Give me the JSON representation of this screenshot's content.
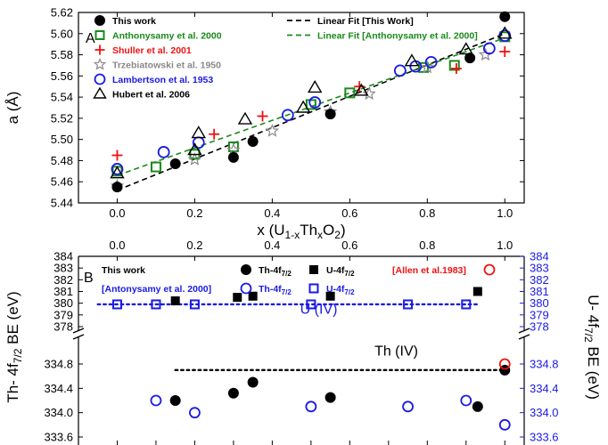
{
  "chart_data": [
    {
      "type": "scatter",
      "panel_label": "A",
      "xlabel": "x (U",
      "xlabel_sub1": "1-x",
      "xlabel_mid": "Th",
      "xlabel_sub2": "x",
      "xlabel_end": "O",
      "xlabel_sub3": "2",
      "xlabel_close": ")",
      "ylabel": "a (Å)",
      "xlim": [
        -0.1,
        1.05
      ],
      "ylim": [
        5.44,
        5.62
      ],
      "x_ticks": [
        "0.0",
        "0.2",
        "0.4",
        "0.6",
        "0.8",
        "1.0"
      ],
      "x_tick_values": [
        0.0,
        0.2,
        0.4,
        0.6,
        0.8,
        1.0
      ],
      "y_ticks": [
        "5.44",
        "5.46",
        "5.48",
        "5.50",
        "5.52",
        "5.54",
        "5.56",
        "5.58",
        "5.60",
        "5.62"
      ],
      "y_tick_values": [
        5.44,
        5.46,
        5.48,
        5.5,
        5.52,
        5.54,
        5.56,
        5.58,
        5.6,
        5.62
      ],
      "legend_placement": "top",
      "series": [
        {
          "name": "This work",
          "marker": "filled-circle",
          "color": "#000000",
          "points": [
            [
              0.0,
              5.455
            ],
            [
              0.15,
              5.477
            ],
            [
              0.3,
              5.483
            ],
            [
              0.35,
              5.498
            ],
            [
              0.55,
              5.524
            ],
            [
              0.91,
              5.577
            ],
            [
              1.0,
              5.616
            ]
          ]
        },
        {
          "name": "Anthonysamy et al. 2000",
          "marker": "open-square",
          "color": "#1a8a1a",
          "points": [
            [
              0.0,
              5.47
            ],
            [
              0.1,
              5.474
            ],
            [
              0.2,
              5.486
            ],
            [
              0.3,
              5.493
            ],
            [
              0.5,
              5.533
            ],
            [
              0.6,
              5.544
            ],
            [
              0.79,
              5.568
            ],
            [
              0.87,
              5.57
            ],
            [
              1.0,
              5.597
            ]
          ]
        },
        {
          "name": "Shuller et al. 2001",
          "marker": "plus",
          "color": "#ee1111",
          "points": [
            [
              0.0,
              5.485
            ],
            [
              0.25,
              5.505
            ],
            [
              0.375,
              5.522
            ],
            [
              0.625,
              5.55
            ],
            [
              0.875,
              5.567
            ],
            [
              1.0,
              5.583
            ]
          ]
        },
        {
          "name": "Trzebiatowski et al. 1950",
          "marker": "open-star",
          "color": "#888888",
          "points": [
            [
              0.0,
              5.456
            ],
            [
              0.2,
              5.481
            ],
            [
              0.3,
              5.49
            ],
            [
              0.4,
              5.508
            ],
            [
              0.55,
              5.526
            ],
            [
              0.65,
              5.543
            ],
            [
              0.8,
              5.568
            ],
            [
              0.95,
              5.58
            ]
          ]
        },
        {
          "name": "Lambertson et al. 1953",
          "marker": "open-circle",
          "color": "#1a1ae6",
          "points": [
            [
              0.0,
              5.472
            ],
            [
              0.12,
              5.488
            ],
            [
              0.21,
              5.497
            ],
            [
              0.44,
              5.523
            ],
            [
              0.51,
              5.535
            ],
            [
              0.73,
              5.565
            ],
            [
              0.77,
              5.569
            ],
            [
              0.81,
              5.573
            ],
            [
              0.96,
              5.586
            ],
            [
              1.0,
              5.598
            ]
          ]
        },
        {
          "name": "Hubert et al. 2006",
          "marker": "open-triangle",
          "color": "#000000",
          "points": [
            [
              0.0,
              5.468
            ],
            [
              0.2,
              5.49
            ],
            [
              0.21,
              5.506
            ],
            [
              0.33,
              5.519
            ],
            [
              0.51,
              5.549
            ],
            [
              0.48,
              5.53
            ],
            [
              0.63,
              5.546
            ],
            [
              0.76,
              5.574
            ],
            [
              0.9,
              5.585
            ],
            [
              1.0,
              5.6
            ]
          ]
        }
      ],
      "fits": [
        {
          "name": "Linear Fit [This Work]",
          "color": "#000000",
          "from": [
            0.0,
            5.452
          ],
          "to": [
            1.0,
            5.6
          ]
        },
        {
          "name": "Linear Fit [Anthonysamy et al. 2000]",
          "color": "#1a8a1a",
          "from": [
            0.0,
            5.466
          ],
          "to": [
            1.0,
            5.596
          ]
        }
      ]
    },
    {
      "type": "scatter",
      "panel_label": "B",
      "ylabel_left": "Th- 4f",
      "ylabel_left_sub": "7/2",
      "ylabel_left_end": " BE (eV)",
      "ylabel_right": "U- 4f",
      "ylabel_right_sub": "7/2",
      "ylabel_right_end": " BE (eV)",
      "xlim": [
        -0.1,
        1.05
      ],
      "x_ticks": [
        "0.0",
        "0.2",
        "0.4",
        "0.6",
        "0.8",
        "1.0"
      ],
      "x_tick_values": [
        0.0,
        0.2,
        0.4,
        0.6,
        0.8,
        1.0
      ],
      "axis_break": "between 378 and 334.8",
      "upper_ylim": [
        378,
        384
      ],
      "upper_y_ticks": [
        "378",
        "379",
        "380",
        "381",
        "382",
        "383",
        "384"
      ],
      "upper_y_tick_values": [
        378,
        379,
        380,
        381,
        382,
        383,
        384
      ],
      "lower_ylim": [
        333.6,
        334.8
      ],
      "lower_y_ticks": [
        "333.6",
        "334.0",
        "334.4",
        "334.8"
      ],
      "lower_y_tick_values": [
        333.6,
        334.0,
        334.4,
        334.8
      ],
      "legend": {
        "row1_label": "This work",
        "row1_series": [
          "Th-4f7/2 filled",
          "U-4f7/2 filled"
        ],
        "row2_label": "[Antonysamy et al. 2000]",
        "row2_series": [
          "Th-4f7/2 open",
          "U-4f7/2 open"
        ],
        "allen_label": "[Allen et al.1983]"
      },
      "legend_text": {
        "th_prefix": "Th-4f",
        "u_prefix": "U-4f",
        "sub": "7/2"
      },
      "annotations": [
        {
          "text": "U (IV)",
          "x": 0.52,
          "y": 379.1,
          "color": "#1a1ae6"
        },
        {
          "text": "Th (IV)",
          "x": 0.72,
          "y": 334.94,
          "color": "#000000"
        }
      ],
      "reference_lines": [
        {
          "name": "U (IV)",
          "color": "#1a1ae6",
          "y": 379.9,
          "x_from": -0.05,
          "x_to": 0.93,
          "style": "dotted"
        },
        {
          "name": "Th (IV)",
          "color": "#000000",
          "y": 334.7,
          "x_from": 0.15,
          "x_to": 1.0,
          "style": "dotted"
        }
      ],
      "series": [
        {
          "name": "This work Th-4f7/2",
          "marker": "filled-circle",
          "color": "#000000",
          "axis": "lower",
          "points": [
            [
              0.15,
              334.2
            ],
            [
              0.3,
              334.32
            ],
            [
              0.35,
              334.5
            ],
            [
              0.55,
              334.25
            ],
            [
              0.93,
              334.1
            ],
            [
              1.0,
              334.7
            ]
          ]
        },
        {
          "name": "This work U-4f7/2",
          "marker": "filled-square",
          "color": "#000000",
          "axis": "upper",
          "points": [
            [
              0.15,
              380.2
            ],
            [
              0.31,
              380.5
            ],
            [
              0.35,
              380.6
            ],
            [
              0.55,
              380.6
            ],
            [
              0.93,
              381.0
            ]
          ]
        },
        {
          "name": "Antonysamy et al. 2000 Th-4f7/2",
          "marker": "open-circle",
          "color": "#1a1ae6",
          "axis": "lower",
          "points": [
            [
              0.1,
              334.2
            ],
            [
              0.2,
              334.0
            ],
            [
              0.5,
              334.1
            ],
            [
              0.75,
              334.1
            ],
            [
              0.9,
              334.2
            ],
            [
              1.0,
              333.8
            ]
          ]
        },
        {
          "name": "Antonysamy et al. 2000 U-4f7/2",
          "marker": "open-square",
          "color": "#1a1ae6",
          "axis": "upper",
          "points": [
            [
              0.0,
              379.9
            ],
            [
              0.1,
              379.9
            ],
            [
              0.2,
              379.9
            ],
            [
              0.5,
              379.9
            ],
            [
              0.75,
              379.9
            ],
            [
              0.9,
              379.9
            ]
          ]
        },
        {
          "name": "Allen et al.1983",
          "marker": "open-circle",
          "color": "#ee1111",
          "axis": "lower",
          "points": [
            [
              1.0,
              334.8
            ]
          ]
        }
      ]
    }
  ]
}
